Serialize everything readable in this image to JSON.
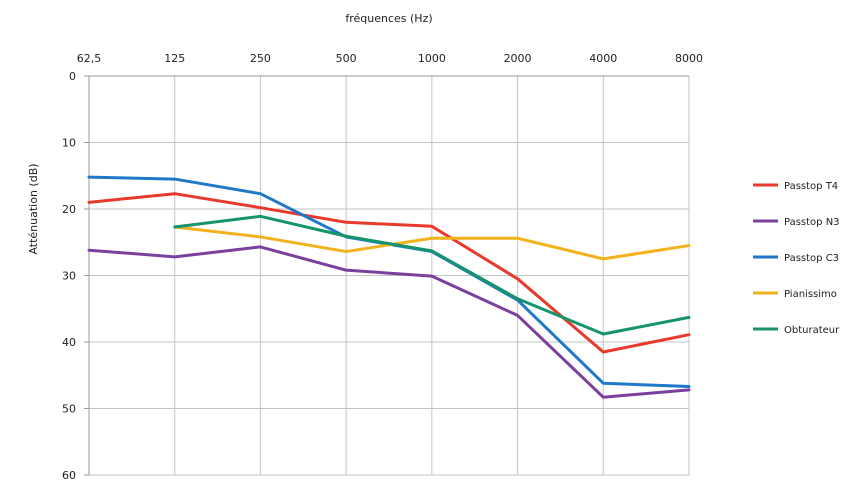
{
  "chart_data": {
    "type": "line",
    "title": "",
    "xlabel": "fréquences (Hz)",
    "ylabel": "Atténuation (dB)",
    "x_axis_position": "top",
    "y_axis_inverted": true,
    "grid": true,
    "legend_position": "right",
    "categories": [
      "62,5",
      "125",
      "250",
      "500",
      "1000",
      "2000",
      "4000",
      "8000"
    ],
    "y_ticks": [
      "0",
      "10",
      "20",
      "30",
      "40",
      "50",
      "60"
    ],
    "ylim": [
      0,
      60
    ],
    "series": [
      {
        "name": "Passtop T4",
        "color": "#e8392b",
        "values": [
          19,
          17.7,
          19.8,
          22,
          22.6,
          30.5,
          41.5,
          38.9
        ]
      },
      {
        "name": "Passtop N3",
        "color": "#7b3f9e",
        "values": [
          26.2,
          27.2,
          25.7,
          29.2,
          30.1,
          36,
          48.3,
          47.2
        ]
      },
      {
        "name": "Passtop C3",
        "color": "#1f78c8",
        "values": [
          15.2,
          15.5,
          17.7,
          24.2,
          26.4,
          33.7,
          46.2,
          46.7
        ]
      },
      {
        "name": "Pianissimo",
        "color": "#f2b21c",
        "values": [
          null,
          22.7,
          24.2,
          26.4,
          24.4,
          24.4,
          27.5,
          25.5
        ]
      },
      {
        "name": "Obturateur",
        "color": "#16946b",
        "values": [
          null,
          22.7,
          21.1,
          24.1,
          26.3,
          33.5,
          38.8,
          36.3
        ]
      }
    ]
  }
}
